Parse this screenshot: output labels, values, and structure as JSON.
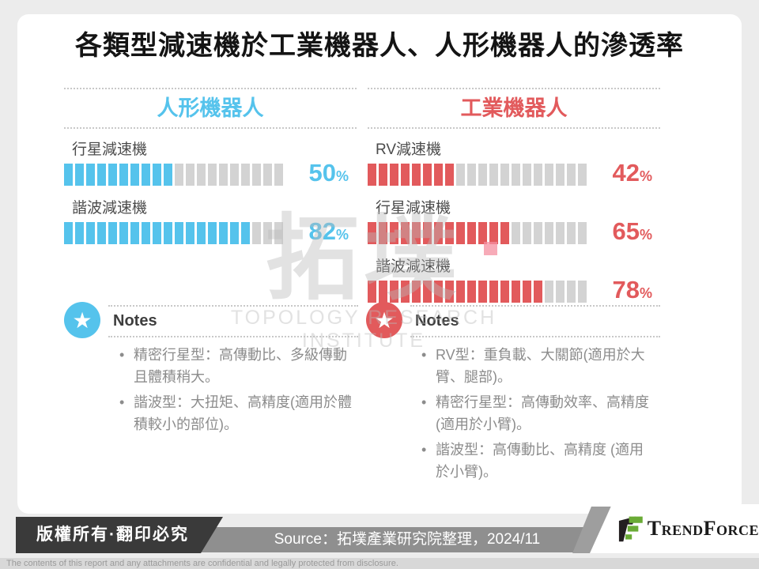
{
  "title": "各類型減速機於工業機器人、人形機器人的滲透率",
  "units": {
    "percent": "%"
  },
  "icons": {
    "star": "★"
  },
  "chart_data": [
    {
      "type": "bar",
      "title": "人形機器人",
      "accent_color": "#55C3EC",
      "empty_color": "#D3D3D3",
      "unit": "%",
      "value_range": [
        0,
        100
      ],
      "segments_total": 20,
      "items": [
        {
          "label": "行星減速機",
          "value": 50,
          "filled": 10,
          "total": 20
        },
        {
          "label": "諧波減速機",
          "value": 82,
          "filled": 17,
          "total": 20
        }
      ]
    },
    {
      "type": "bar",
      "title": "工業機器人",
      "accent_color": "#E25A5C",
      "empty_color": "#D3D3D3",
      "unit": "%",
      "value_range": [
        0,
        100
      ],
      "segments_total": 20,
      "items": [
        {
          "label": "RV減速機",
          "value": 42,
          "filled": 8,
          "total": 20
        },
        {
          "label": "行星減速機",
          "value": 65,
          "filled": 13,
          "total": 20
        },
        {
          "label": "諧波減速機",
          "value": 78,
          "filled": 16,
          "total": 20
        }
      ]
    }
  ],
  "notes": [
    {
      "heading": "Notes",
      "accent": "#55C3EC",
      "bullets": [
        "精密行星型：高傳動比、多級傳動且體積稍大。",
        "諧波型：大扭矩、高精度(適用於體積較小的部位)。"
      ]
    },
    {
      "heading": "Notes",
      "accent": "#E25A5C",
      "bullets": [
        "RV型：重負載、大關節(適用於大臂、腿部)。",
        "精密行星型：高傳動效率、高精度(適用於小臂)。",
        "諧波型：高傳動比、高精度 (適用於小臂)。"
      ]
    }
  ],
  "watermark": {
    "main": "拓墣",
    "sub": "TOPOLOGY RESEARCH INSTITUTE"
  },
  "footer": {
    "copyright": "版權所有·翻印必究",
    "source": "Source：拓墣產業研究院整理，2024/11",
    "brand": "TrendForce",
    "disclaimer": "The contents of this report and any attachments are confidential and legally protected from disclosure."
  }
}
